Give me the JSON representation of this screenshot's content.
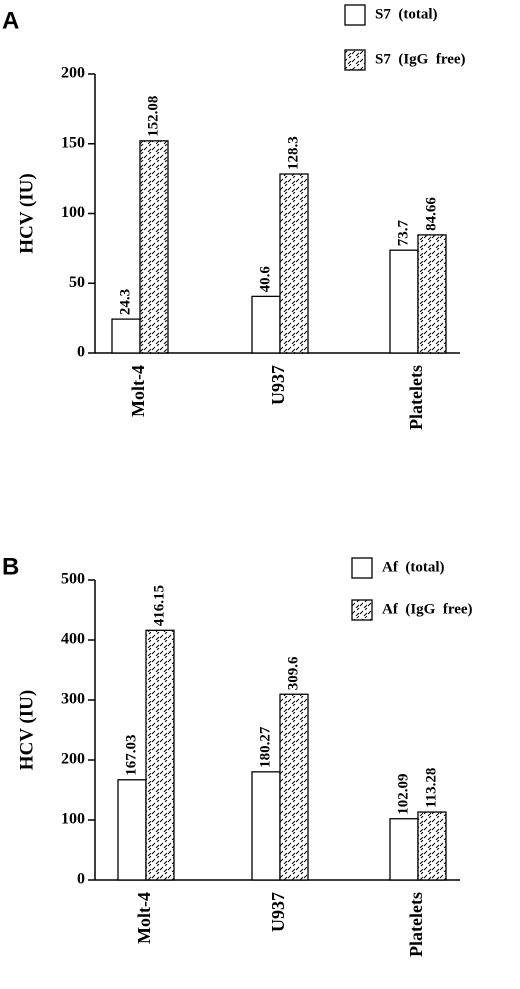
{
  "chart_data": [
    {
      "type": "bar",
      "panel": "A",
      "y_label": "HCV (IU)",
      "categories": [
        "Molt-4",
        "U937",
        "Platelets"
      ],
      "series": [
        {
          "name": "S7  (total)",
          "color": "#ffffff",
          "values": [
            24.3,
            40.6,
            73.7
          ]
        },
        {
          "name": "S7  (IgG  free)",
          "color": "#ffffff",
          "pattern": "hatch",
          "values": [
            152.08,
            128.3,
            84.66
          ]
        }
      ],
      "ylim": [
        0,
        200
      ],
      "yticks": [
        0,
        50,
        100,
        150,
        200
      ]
    },
    {
      "type": "bar",
      "panel": "B",
      "y_label": "HCV (IU)",
      "categories": [
        "Molt-4",
        "U937",
        "Platelets"
      ],
      "series": [
        {
          "name": "Af  (total)",
          "color": "#ffffff",
          "values": [
            167.03,
            180.27,
            102.09
          ]
        },
        {
          "name": "Af  (IgG  free)",
          "color": "#ffffff",
          "pattern": "hatch",
          "values": [
            416.15,
            309.6,
            113.28
          ]
        }
      ],
      "ylim": [
        0,
        500
      ],
      "yticks": [
        0,
        100,
        200,
        300,
        400,
        500
      ]
    }
  ]
}
